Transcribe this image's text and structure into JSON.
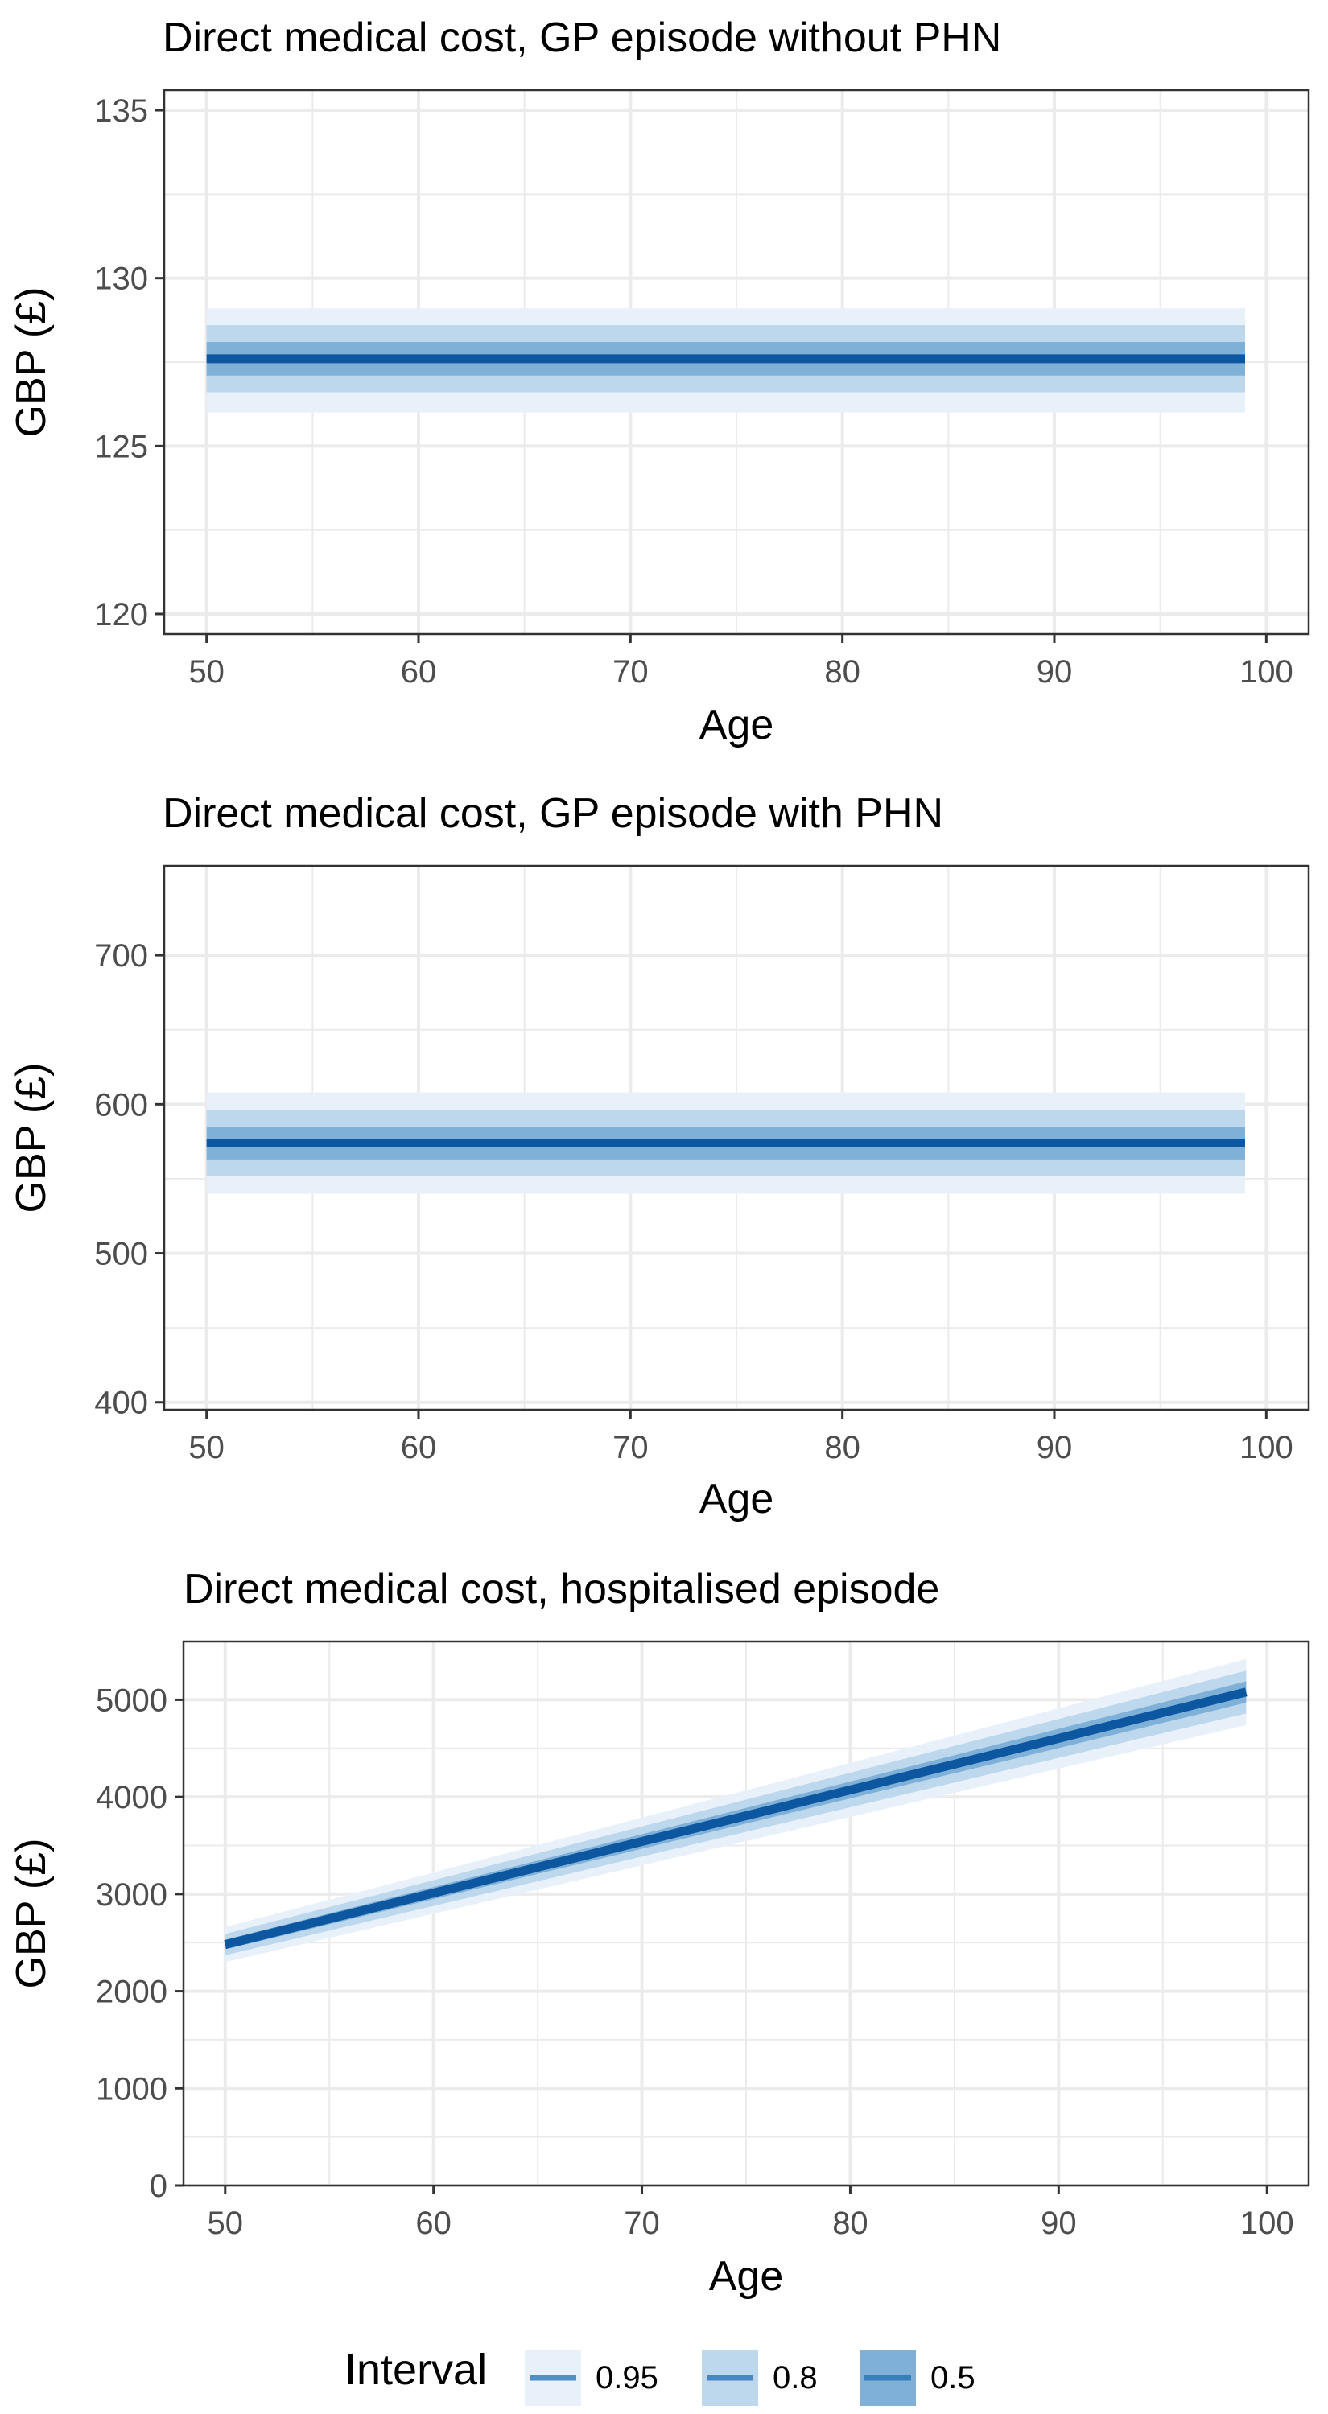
{
  "colors": {
    "band_95": "#e8f1fa",
    "band_80": "#bdd7ec",
    "band_50": "#7fb1d8",
    "line": "#0d56a0",
    "grid": "#ebebeb",
    "border": "#333333"
  },
  "legend": {
    "title": "Interval",
    "entries": [
      {
        "label": "0.95",
        "key": "band_95"
      },
      {
        "label": "0.8",
        "key": "band_80"
      },
      {
        "label": "0.5",
        "key": "band_50"
      }
    ]
  },
  "chart_data": [
    {
      "type": "area",
      "title": "Direct medical cost, GP episode without PHN",
      "xlabel": "Age",
      "ylabel": "GBP (£)",
      "xlim": [
        48,
        102
      ],
      "ylim": [
        119.4,
        135.6
      ],
      "xticks": [
        50,
        60,
        70,
        80,
        90,
        100
      ],
      "yticks": [
        120,
        125,
        130,
        135
      ],
      "x": [
        50,
        99
      ],
      "series": [
        {
          "name": "median",
          "values": [
            127.6,
            127.6
          ]
        },
        {
          "name": "0.5",
          "lower": [
            127.1,
            127.1
          ],
          "upper": [
            128.1,
            128.1
          ]
        },
        {
          "name": "0.8",
          "lower": [
            126.6,
            126.6
          ],
          "upper": [
            128.6,
            128.6
          ]
        },
        {
          "name": "0.95",
          "lower": [
            126.0,
            126.0
          ],
          "upper": [
            129.1,
            129.1
          ]
        }
      ]
    },
    {
      "type": "area",
      "title": "Direct medical cost, GP episode with PHN",
      "xlabel": "Age",
      "ylabel": "GBP (£)",
      "xlim": [
        48,
        102
      ],
      "ylim": [
        395,
        760
      ],
      "xticks": [
        50,
        60,
        70,
        80,
        90,
        100
      ],
      "yticks": [
        400,
        500,
        600,
        700
      ],
      "x": [
        50,
        99
      ],
      "series": [
        {
          "name": "median",
          "values": [
            574,
            574
          ]
        },
        {
          "name": "0.5",
          "lower": [
            563,
            563
          ],
          "upper": [
            585,
            585
          ]
        },
        {
          "name": "0.8",
          "lower": [
            552,
            552
          ],
          "upper": [
            596,
            596
          ]
        },
        {
          "name": "0.95",
          "lower": [
            540,
            540
          ],
          "upper": [
            608,
            608
          ]
        }
      ]
    },
    {
      "type": "area",
      "title": "Direct medical cost, hospitalised episode",
      "xlabel": "Age",
      "ylabel": "GBP (£)",
      "xlim": [
        48,
        102
      ],
      "ylim": [
        0,
        5600
      ],
      "xticks": [
        50,
        60,
        70,
        80,
        90,
        100
      ],
      "yticks": [
        0,
        1000,
        2000,
        3000,
        4000,
        5000
      ],
      "x": [
        50,
        99
      ],
      "series": [
        {
          "name": "median",
          "values": [
            2480,
            5080
          ]
        },
        {
          "name": "0.5",
          "lower": [
            2430,
            4970
          ],
          "upper": [
            2530,
            5190
          ]
        },
        {
          "name": "0.8",
          "lower": [
            2370,
            4860
          ],
          "upper": [
            2590,
            5300
          ]
        },
        {
          "name": "0.95",
          "lower": [
            2300,
            4740
          ],
          "upper": [
            2660,
            5420
          ]
        }
      ]
    }
  ]
}
